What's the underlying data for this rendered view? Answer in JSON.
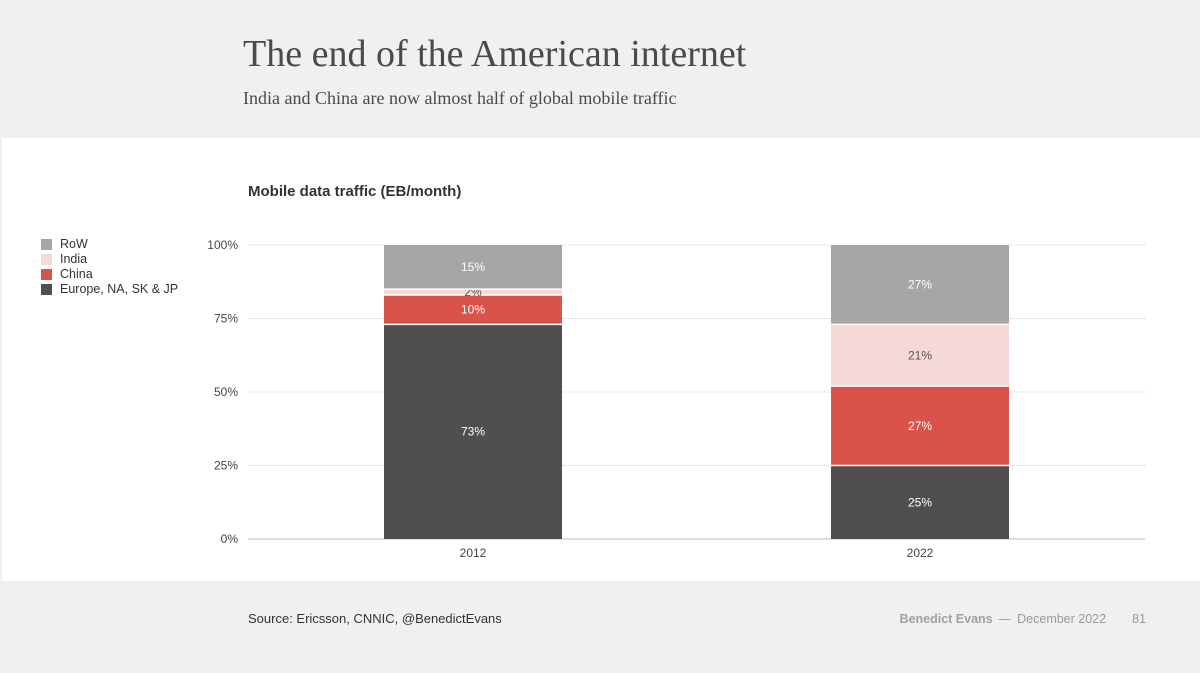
{
  "header": {
    "title": "The end of the American internet",
    "subtitle": "India and China are now almost half of global mobile traffic"
  },
  "footer": {
    "source": "Source: Ericsson, CNNIC, @BenedictEvans",
    "author": "Benedict Evans",
    "separator": "—",
    "date": "December 2022",
    "page": "81"
  },
  "legend": [
    {
      "label": "RoW",
      "color": "#a6a6a6"
    },
    {
      "label": "India",
      "color": "#f5d9d6"
    },
    {
      "label": "China",
      "color": "#d9534a"
    },
    {
      "label": "Europe, NA, SK & JP",
      "color": "#4f4f4f"
    }
  ],
  "chart_data": {
    "type": "bar",
    "stacked": true,
    "title": "Mobile data traffic (EB/month)",
    "categories": [
      "2012",
      "2022"
    ],
    "ylim": [
      0,
      100
    ],
    "yticks": [
      0,
      25,
      50,
      75,
      100
    ],
    "ytick_labels": [
      "0%",
      "25%",
      "50%",
      "75%",
      "100%"
    ],
    "grid": true,
    "legend_position": "left",
    "series": [
      {
        "name": "Europe, NA, SK & JP",
        "color": "#4f4f4f",
        "values": [
          73,
          25
        ],
        "labels": [
          "73%",
          "25%"
        ],
        "label_color": "#ffffff"
      },
      {
        "name": "China",
        "color": "#d9534a",
        "values": [
          10,
          27
        ],
        "labels": [
          "10%",
          "27%"
        ],
        "label_color": "#ffffff"
      },
      {
        "name": "India",
        "color": "#f5d9d6",
        "values": [
          2,
          21
        ],
        "labels": [
          "2%",
          "21%"
        ],
        "label_color": "#555555"
      },
      {
        "name": "RoW",
        "color": "#a6a6a6",
        "values": [
          15,
          27
        ],
        "labels": [
          "15%",
          "27%"
        ],
        "label_color": "#ffffff"
      }
    ]
  }
}
